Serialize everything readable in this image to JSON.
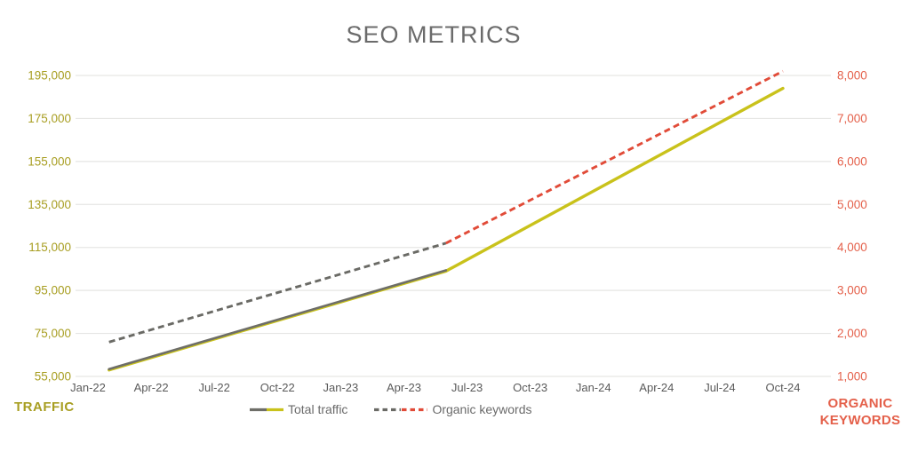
{
  "title": "SEO METRICS",
  "left_axis_corner_label": "TRAFFIC",
  "right_axis_corner_label": [
    "ORGANIC",
    "KEYWORDS"
  ],
  "legend": {
    "entries": [
      "Total traffic",
      "Organic keywords"
    ]
  },
  "colors": {
    "title_text": "#6b6b6b",
    "traffic_accent": "#a89e22",
    "keywords_accent": "#e4604a",
    "x_axis_text": "#5a5a5a",
    "legend_text": "#6a6a6a",
    "gridline": "#e6e6e4",
    "actual_line_gray": "#6e6e68",
    "traffic_line_yellow": "#c9c21b",
    "keywords_line_red": "#e14b38"
  },
  "chart_data": {
    "type": "line",
    "title": "SEO METRICS",
    "x_tick_labels": [
      "Jan-22",
      "Apr-22",
      "Jul-22",
      "Oct-22",
      "Jan-23",
      "Apr-23",
      "Jul-23",
      "Oct-23",
      "Jan-24",
      "Apr-24",
      "Jul-24",
      "Oct-24"
    ],
    "left_axis": {
      "label": "TRAFFIC",
      "min": 55000,
      "max": 195000,
      "step": 20000,
      "tick_values": [
        55000,
        75000,
        95000,
        115000,
        135000,
        155000,
        175000,
        195000
      ],
      "tick_labels": [
        "55,000",
        "75,000",
        "95,000",
        "115,000",
        "135,000",
        "155,000",
        "175,000",
        "195,000"
      ]
    },
    "right_axis": {
      "label": "ORGANIC KEYWORDS",
      "min": 1000,
      "max": 8000,
      "step": 1000,
      "tick_values": [
        1000,
        2000,
        3000,
        4000,
        5000,
        6000,
        7000,
        8000
      ],
      "tick_labels": [
        "1,000",
        "2,000",
        "3,000",
        "4,000",
        "5,000",
        "6,000",
        "7,000",
        "8,000"
      ]
    },
    "series": [
      {
        "name": "Total traffic",
        "axis": "left",
        "style": "solid",
        "color_actual": "#6e6e68",
        "color_projected": "#c9c21b",
        "split_index": 1,
        "points": [
          {
            "x": "Feb-22",
            "month_index": 1,
            "value": 58000
          },
          {
            "x": "Jun-23",
            "month_index": 17,
            "value": 104000
          },
          {
            "x": "Oct-24",
            "month_index": 33,
            "value": 189000
          }
        ]
      },
      {
        "name": "Organic keywords",
        "axis": "right",
        "style": "dashed",
        "color_actual": "#6a6a65",
        "color_projected": "#e14b38",
        "split_index": 1,
        "points": [
          {
            "x": "Feb-22",
            "month_index": 1,
            "value": 1800
          },
          {
            "x": "Jun-23",
            "month_index": 17,
            "value": 4100
          },
          {
            "x": "Oct-24",
            "month_index": 33,
            "value": 8100
          }
        ]
      }
    ],
    "grid": "horizontal",
    "legend_position": "bottom-center"
  }
}
